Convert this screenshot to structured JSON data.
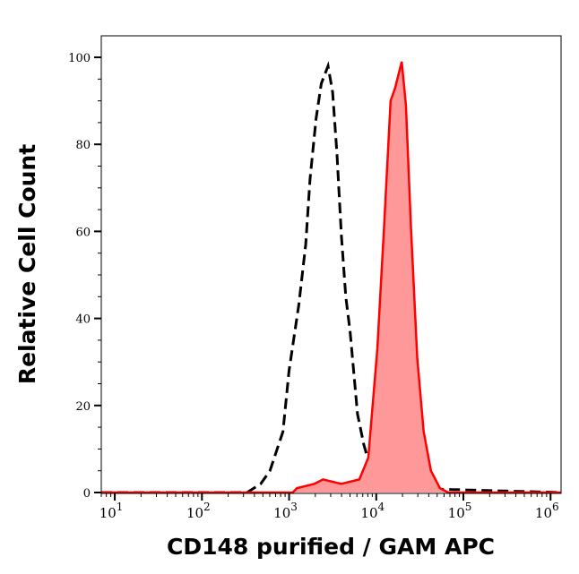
{
  "chart_data": {
    "type": "area",
    "title": "",
    "xlabel": "CD148 purified / GAM APC",
    "ylabel": "Relative Cell Count",
    "xscale": "log",
    "xlim": [
      7,
      1320000
    ],
    "ylim": [
      0,
      105
    ],
    "x_ticks": [
      {
        "base": "10",
        "exp": "1",
        "value": 10
      },
      {
        "base": "10",
        "exp": "2",
        "value": 100
      },
      {
        "base": "10",
        "exp": "3",
        "value": 1000
      },
      {
        "base": "10",
        "exp": "4",
        "value": 10000
      },
      {
        "base": "10",
        "exp": "5",
        "value": 100000
      },
      {
        "base": "10",
        "exp": "6",
        "value": 1000000
      }
    ],
    "y_ticks": [
      "0",
      "20",
      "40",
      "60",
      "80",
      "100"
    ],
    "grid": false,
    "series": [
      {
        "style": "dashed-line",
        "color": "#000000",
        "x": [
          7,
          330,
          473,
          603,
          851,
          1000,
          1290,
          1550,
          1740,
          2040,
          2340,
          2800,
          3160,
          3540,
          3980,
          4470,
          5010,
          6100,
          7200,
          8500,
          10300,
          18500,
          1320000
        ],
        "y": [
          0,
          0,
          2,
          5,
          14,
          28,
          43,
          57,
          72,
          86,
          94,
          98,
          92,
          78,
          59,
          45,
          37,
          18,
          11,
          6,
          3,
          1,
          0
        ]
      },
      {
        "style": "filled",
        "color": "#ff0000",
        "fill": "#ff9999",
        "x": [
          7,
          1100,
          1230,
          1950,
          2450,
          3980,
          6400,
          8100,
          10300,
          12300,
          14600,
          16500,
          19600,
          21900,
          25000,
          29500,
          35000,
          42400,
          53700,
          67000,
          1320000
        ],
        "y": [
          0,
          0,
          1,
          2,
          3,
          2,
          3,
          8,
          33,
          61,
          90,
          93,
          99,
          89,
          61,
          31,
          14,
          5,
          1,
          0,
          0
        ]
      }
    ]
  }
}
